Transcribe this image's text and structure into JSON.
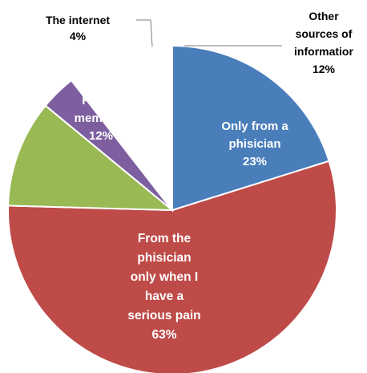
{
  "chart_data": {
    "type": "pie",
    "slices": [
      {
        "label": "Only from a phisician",
        "value": 23,
        "value_text": "23%",
        "color": "#4a7ebb",
        "text_color": "#ffffff",
        "lines": [
          "Only from a",
          "phisician",
          "23%"
        ]
      },
      {
        "label": "From the phisician only when I have a serious pain",
        "value": 63,
        "value_text": "63%",
        "color": "#be4b48",
        "text_color": "#ffffff",
        "lines": [
          "From the",
          "phisician",
          "only when I",
          "have a",
          "serious pain",
          "63%"
        ]
      },
      {
        "label": "Family members",
        "value": 12,
        "value_text": "12%",
        "color": "#98b954",
        "text_color": "#ffffff",
        "lines": [
          "Family",
          "members",
          "12%"
        ]
      },
      {
        "label": "The internet",
        "value": 4,
        "value_text": "4%",
        "color": "#7d5fa0",
        "text_color": "#000000",
        "lines": [
          "The internet",
          "4%"
        ]
      },
      {
        "label": "Other sources of information",
        "value": 12,
        "value_text": "12%",
        "color": "#ffffff",
        "text_color": "#000000",
        "lines": [
          "Other",
          "sources of",
          "informatior",
          "12%"
        ]
      }
    ]
  }
}
